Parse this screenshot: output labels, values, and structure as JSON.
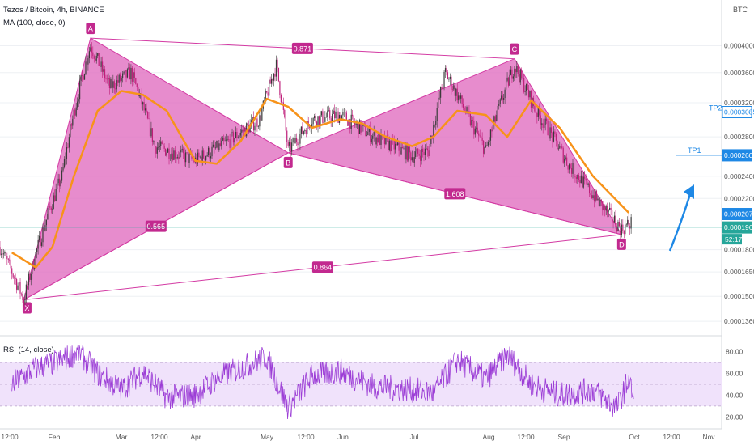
{
  "header": {
    "symbol": "Tezos / Bitcoin, 4h, BINANCE",
    "ma_label": "MA (100, close, 0)",
    "currency": "BTC"
  },
  "rsi_panel": {
    "label": "RSI (14, close)"
  },
  "colors": {
    "harmonic_fill": "#e06cbf",
    "harmonic_line": "#d33aa3",
    "point_badge": "#c2298f",
    "ma_line": "#f7931a",
    "rsi_line": "#9c3ed6",
    "rsi_band": "#f0e2fb",
    "candle_up": "#3a3a3a",
    "candle_down": "#bf1f7a",
    "target_line": "#1e88e5",
    "price_line": "#26a69a"
  },
  "chart_data": [
    {
      "type": "line",
      "title": "Tezos / Bitcoin, 4h, BINANCE",
      "ylabel": "BTC",
      "ylim": [
        0.000131,
        0.000435
      ],
      "y_ticks": [
        "0.0004000",
        "0.0003600",
        "0.0003200",
        "0.0002800",
        "0.0002400",
        "0.0002200",
        "0.0001800",
        "0.0001650",
        "0.0001500",
        "0.0001360"
      ],
      "x_ticks": [
        "12:00",
        "Feb",
        "Mar",
        "12:00",
        "Apr",
        "May",
        "12:00",
        "Jun",
        "Jul",
        "Aug",
        "12:00",
        "Sep",
        "Oct",
        "12:00",
        "Nov"
      ],
      "pattern_points": [
        {
          "name": "X",
          "date": "2020-01-20",
          "price": 0.000148
        },
        {
          "name": "A",
          "date": "2020-02-17",
          "price": 0.000412
        },
        {
          "name": "B",
          "date": "2020-05-10",
          "price": 0.000263
        },
        {
          "name": "C",
          "date": "2020-08-13",
          "price": 0.00038
        },
        {
          "name": "D",
          "date": "2020-09-27",
          "price": 0.000191
        }
      ],
      "ratios": [
        {
          "label": "0.871",
          "between": "A-C"
        },
        {
          "label": "0.565",
          "between": "X-B"
        },
        {
          "label": "1.608",
          "between": "B-D"
        },
        {
          "label": "0.864",
          "between": "X-D"
        }
      ],
      "price_levels": [
        {
          "label": "TP2",
          "value": "0.0003085"
        },
        {
          "label": "TP1",
          "value": "0.0002605"
        },
        {
          "label": "",
          "value": "0.0002070"
        },
        {
          "label": "",
          "value": "0.0001964"
        }
      ],
      "countdown": "52:17",
      "series": [
        {
          "name": "MA (100, close, 0)",
          "points": [
            [
              "2020-01-15",
              0.000178
            ],
            [
              "2020-01-25",
              0.000168
            ],
            [
              "2020-02-01",
              0.000182
            ],
            [
              "2020-02-10",
              0.00024
            ],
            [
              "2020-02-20",
              0.00031
            ],
            [
              "2020-03-01",
              0.000335
            ],
            [
              "2020-03-10",
              0.00033
            ],
            [
              "2020-03-20",
              0.00031
            ],
            [
              "2020-04-01",
              0.000255
            ],
            [
              "2020-04-10",
              0.000252
            ],
            [
              "2020-04-20",
              0.000275
            ],
            [
              "2020-05-01",
              0.000325
            ],
            [
              "2020-05-10",
              0.000315
            ],
            [
              "2020-05-20",
              0.00029
            ],
            [
              "2020-06-01",
              0.0003
            ],
            [
              "2020-06-10",
              0.000295
            ],
            [
              "2020-06-20",
              0.00028
            ],
            [
              "2020-07-01",
              0.00027
            ],
            [
              "2020-07-10",
              0.00028
            ],
            [
              "2020-07-20",
              0.00031
            ],
            [
              "2020-08-01",
              0.000305
            ],
            [
              "2020-08-10",
              0.00028
            ],
            [
              "2020-08-20",
              0.000323
            ],
            [
              "2020-09-01",
              0.00029
            ],
            [
              "2020-09-15",
              0.00024
            ],
            [
              "2020-09-30",
              0.000208
            ]
          ]
        }
      ]
    },
    {
      "type": "line",
      "title": "RSI (14, close)",
      "ylim": [
        15,
        88
      ],
      "y_ticks": [
        "80.00",
        "60.00",
        "40.00",
        "20.00"
      ],
      "band": [
        30,
        70
      ],
      "series": [
        {
          "name": "RSI (14, close)",
          "points": [
            [
              "2020-01-15",
              50
            ],
            [
              "2020-01-25",
              65
            ],
            [
              "2020-02-05",
              72
            ],
            [
              "2020-02-12",
              80
            ],
            [
              "2020-02-20",
              60
            ],
            [
              "2020-03-01",
              45
            ],
            [
              "2020-03-10",
              62
            ],
            [
              "2020-03-20",
              38
            ],
            [
              "2020-04-01",
              40
            ],
            [
              "2020-04-10",
              55
            ],
            [
              "2020-04-20",
              65
            ],
            [
              "2020-05-01",
              75
            ],
            [
              "2020-05-10",
              28
            ],
            [
              "2020-05-20",
              58
            ],
            [
              "2020-06-01",
              62
            ],
            [
              "2020-06-15",
              48
            ],
            [
              "2020-07-01",
              45
            ],
            [
              "2020-07-10",
              42
            ],
            [
              "2020-07-20",
              72
            ],
            [
              "2020-08-01",
              55
            ],
            [
              "2020-08-10",
              78
            ],
            [
              "2020-08-20",
              50
            ],
            [
              "2020-09-01",
              40
            ],
            [
              "2020-09-15",
              45
            ],
            [
              "2020-09-25",
              28
            ],
            [
              "2020-09-30",
              55
            ],
            [
              "2020-10-02",
              36
            ]
          ]
        }
      ]
    }
  ]
}
